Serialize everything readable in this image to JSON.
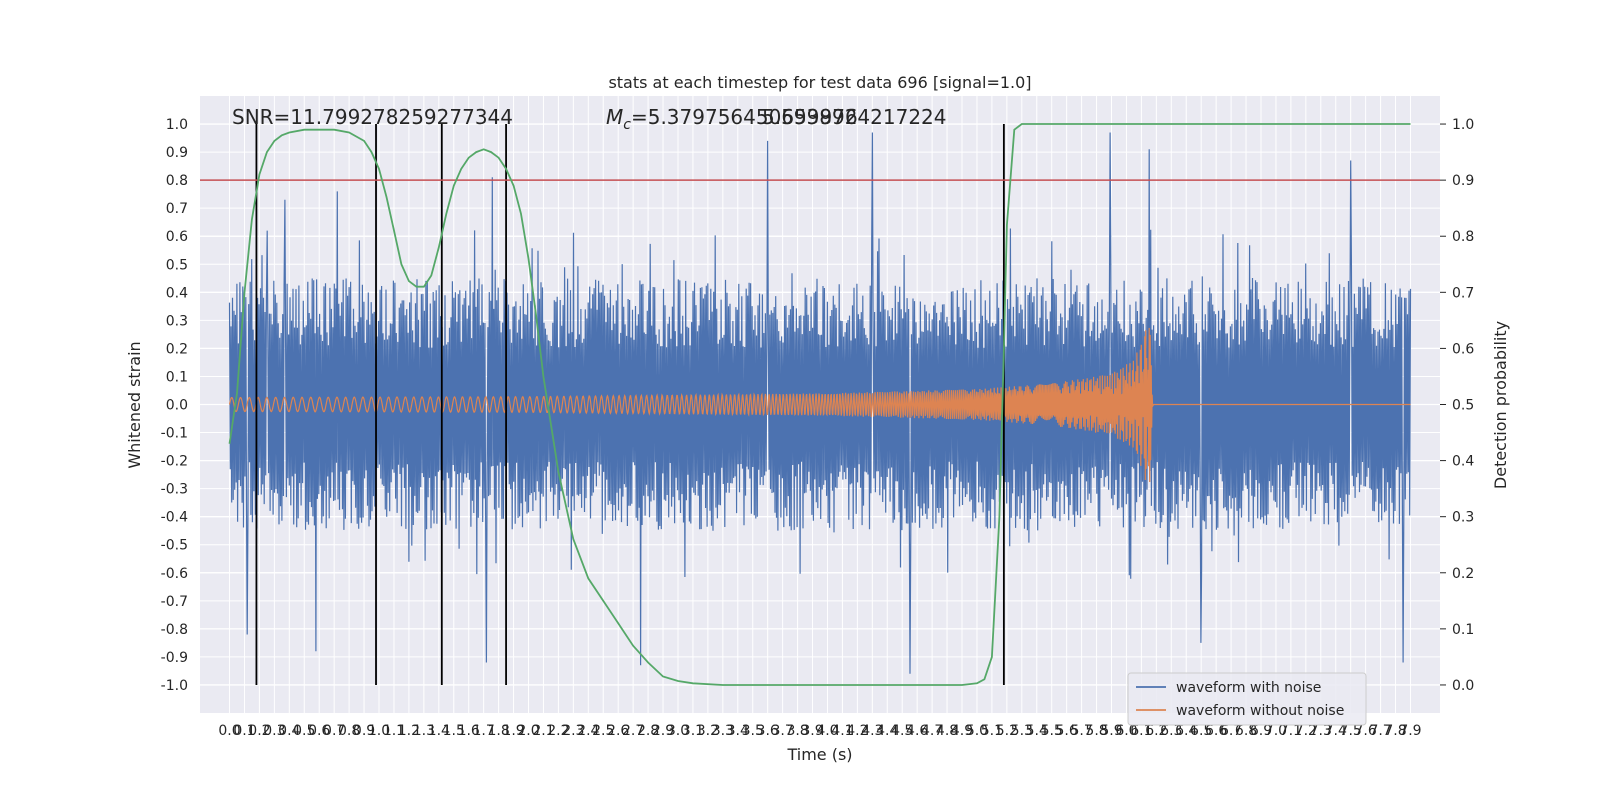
{
  "chart_data": {
    "type": "line",
    "title": "stats at each timestep for test data 696 [signal=1.0]",
    "xlabel": "Time (s)",
    "ylabel_left": "Whitened strain",
    "ylabel_right": "Detection probability",
    "xlim": [
      0.0,
      7.9
    ],
    "ylim_left": [
      -1.1,
      1.1
    ],
    "ylim_right": [
      -0.05,
      1.05
    ],
    "xticks": [
      "0.0",
      "0.1",
      "0.2",
      "0.3",
      "0.4",
      "0.5",
      "0.6",
      "0.7",
      "0.8",
      "0.9",
      "1.0",
      "1.1",
      "1.2",
      "1.3",
      "1.4",
      "1.5",
      "1.6",
      "1.7",
      "1.8",
      "1.9",
      "2.0",
      "2.1",
      "2.2",
      "2.3",
      "2.4",
      "2.5",
      "2.6",
      "2.7",
      "2.8",
      "2.9",
      "3.0",
      "3.1",
      "3.2",
      "3.3",
      "3.4",
      "3.5",
      "3.6",
      "3.7",
      "3.8",
      "3.9",
      "4.0",
      "4.1",
      "4.2",
      "4.3",
      "4.4",
      "4.5",
      "4.6",
      "4.7",
      "4.8",
      "4.9",
      "5.0",
      "5.1",
      "5.2",
      "5.3",
      "5.4",
      "5.5",
      "5.6",
      "5.7",
      "5.8",
      "5.9",
      "6.0",
      "6.1",
      "6.2",
      "6.3",
      "6.4",
      "6.5",
      "6.6",
      "6.7",
      "6.8",
      "6.9",
      "7.0",
      "7.1",
      "7.2",
      "7.3",
      "7.4",
      "7.5",
      "7.6",
      "7.7",
      "7.8",
      "7.9"
    ],
    "yticks_left": [
      "1.0",
      "0.9",
      "0.8",
      "0.7",
      "0.6",
      "0.5",
      "0.4",
      "0.3",
      "0.2",
      "0.1",
      "0.0",
      "-0.1",
      "-0.2",
      "-0.3",
      "-0.4",
      "-0.5",
      "-0.6",
      "-0.7",
      "-0.8",
      "-0.9",
      "-1.0"
    ],
    "yticks_right": [
      "1.0",
      "0.9",
      "0.8",
      "0.7",
      "0.6",
      "0.5",
      "0.4",
      "0.3",
      "0.2",
      "0.1",
      "0.0"
    ],
    "threshold": 0.9,
    "detection_markers_s": [
      0.18,
      0.98,
      1.42,
      1.85,
      5.18
    ],
    "annotations": {
      "snr": "SNR=11.799278259277344",
      "mc_prefix": "M",
      "mc_sub": "c",
      "mc_value": "=5.379756450659976",
      "mc_overlap": "5.5938924217224"
    },
    "series": [
      {
        "name": "waveform with noise",
        "color": "#4c72b0",
        "axis": "left",
        "noise_envelope": 0.45,
        "peak_spikes": [
          {
            "t": 0.25,
            "v": 0.62
          },
          {
            "t": 0.37,
            "v": 0.73
          },
          {
            "t": 0.72,
            "v": 0.76
          },
          {
            "t": 1.76,
            "v": 0.81
          },
          {
            "t": 3.6,
            "v": 0.94
          },
          {
            "t": 4.3,
            "v": 0.97
          },
          {
            "t": 5.89,
            "v": 0.97
          },
          {
            "t": 6.15,
            "v": 0.91
          },
          {
            "t": 7.5,
            "v": 0.87
          }
        ],
        "trough_spikes": [
          {
            "t": 0.12,
            "v": -0.82
          },
          {
            "t": 0.58,
            "v": -0.88
          },
          {
            "t": 1.72,
            "v": -0.92
          },
          {
            "t": 2.75,
            "v": -0.93
          },
          {
            "t": 4.55,
            "v": -0.96
          },
          {
            "t": 6.5,
            "v": -0.85
          },
          {
            "t": 7.85,
            "v": -0.92
          }
        ]
      },
      {
        "name": "waveform without noise",
        "color": "#dd8452",
        "axis": "left",
        "envelope": [
          {
            "t": 0.0,
            "v": 0.025
          },
          {
            "t": 2.0,
            "v": 0.028
          },
          {
            "t": 4.0,
            "v": 0.04
          },
          {
            "t": 5.0,
            "v": 0.055
          },
          {
            "t": 5.5,
            "v": 0.075
          },
          {
            "t": 5.9,
            "v": 0.11
          },
          {
            "t": 6.05,
            "v": 0.16
          },
          {
            "t": 6.12,
            "v": 0.25
          },
          {
            "t": 6.15,
            "v": 0.35
          },
          {
            "t": 6.18,
            "v": 0.0
          },
          {
            "t": 7.9,
            "v": 0.0
          }
        ]
      },
      {
        "name": "detection probability",
        "color": "#55a868",
        "axis": "right",
        "x": [
          0.0,
          0.05,
          0.1,
          0.15,
          0.2,
          0.25,
          0.3,
          0.35,
          0.4,
          0.5,
          0.6,
          0.7,
          0.8,
          0.9,
          0.95,
          1.0,
          1.05,
          1.1,
          1.15,
          1.2,
          1.25,
          1.3,
          1.35,
          1.4,
          1.45,
          1.5,
          1.55,
          1.6,
          1.65,
          1.7,
          1.75,
          1.8,
          1.85,
          1.9,
          1.95,
          2.0,
          2.05,
          2.1,
          2.2,
          2.3,
          2.4,
          2.5,
          2.6,
          2.7,
          2.8,
          2.9,
          3.0,
          3.1,
          3.3,
          3.6,
          4.0,
          4.5,
          4.9,
          5.0,
          5.05,
          5.1,
          5.15,
          5.18,
          5.2,
          5.25,
          5.3,
          5.4,
          5.6,
          6.0,
          7.0,
          7.9
        ],
        "y": [
          0.43,
          0.52,
          0.7,
          0.83,
          0.91,
          0.95,
          0.97,
          0.98,
          0.985,
          0.99,
          0.99,
          0.99,
          0.985,
          0.97,
          0.95,
          0.92,
          0.87,
          0.81,
          0.75,
          0.72,
          0.71,
          0.71,
          0.73,
          0.78,
          0.84,
          0.89,
          0.92,
          0.94,
          0.95,
          0.955,
          0.95,
          0.94,
          0.92,
          0.89,
          0.84,
          0.76,
          0.66,
          0.55,
          0.38,
          0.26,
          0.19,
          0.15,
          0.11,
          0.07,
          0.04,
          0.015,
          0.007,
          0.003,
          0.0,
          0.0,
          0.0,
          0.0,
          0.0,
          0.003,
          0.01,
          0.05,
          0.3,
          0.6,
          0.82,
          0.99,
          1.0,
          1.0,
          1.0,
          1.0,
          1.0,
          1.0
        ]
      }
    ],
    "legend": [
      "waveform with noise",
      "waveform without noise"
    ],
    "legend_position": "lower-right",
    "grid": true
  }
}
